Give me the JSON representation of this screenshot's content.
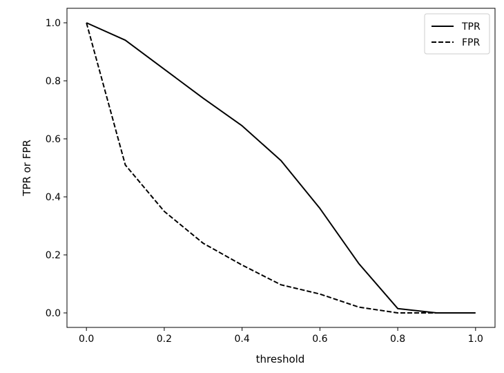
{
  "chart_data": {
    "type": "line",
    "title": "",
    "xlabel": "threshold",
    "ylabel": "TPR or FPR",
    "xlim": [
      -0.05,
      1.05
    ],
    "ylim": [
      -0.05,
      1.05
    ],
    "xticks": [
      0.0,
      0.2,
      0.4,
      0.6,
      0.8,
      1.0
    ],
    "xtick_labels": [
      "0.0",
      "0.2",
      "0.4",
      "0.6",
      "0.8",
      "1.0"
    ],
    "yticks": [
      0.0,
      0.2,
      0.4,
      0.6,
      0.8,
      1.0
    ],
    "ytick_labels": [
      "0.0",
      "0.2",
      "0.4",
      "0.6",
      "0.8",
      "1.0"
    ],
    "grid": false,
    "legend_position": "top-right",
    "x": [
      0.0,
      0.1,
      0.2,
      0.3,
      0.4,
      0.5,
      0.6,
      0.7,
      0.8,
      0.9,
      1.0
    ],
    "series": [
      {
        "name": "TPR",
        "style": "solid",
        "color": "#000000",
        "values": [
          1.0,
          0.94,
          0.84,
          0.74,
          0.645,
          0.525,
          0.36,
          0.17,
          0.015,
          0.0,
          0.0
        ]
      },
      {
        "name": "FPR",
        "style": "dashed",
        "color": "#000000",
        "values": [
          1.0,
          0.51,
          0.35,
          0.24,
          0.165,
          0.097,
          0.065,
          0.02,
          0.0,
          0.0,
          0.0
        ]
      }
    ]
  }
}
